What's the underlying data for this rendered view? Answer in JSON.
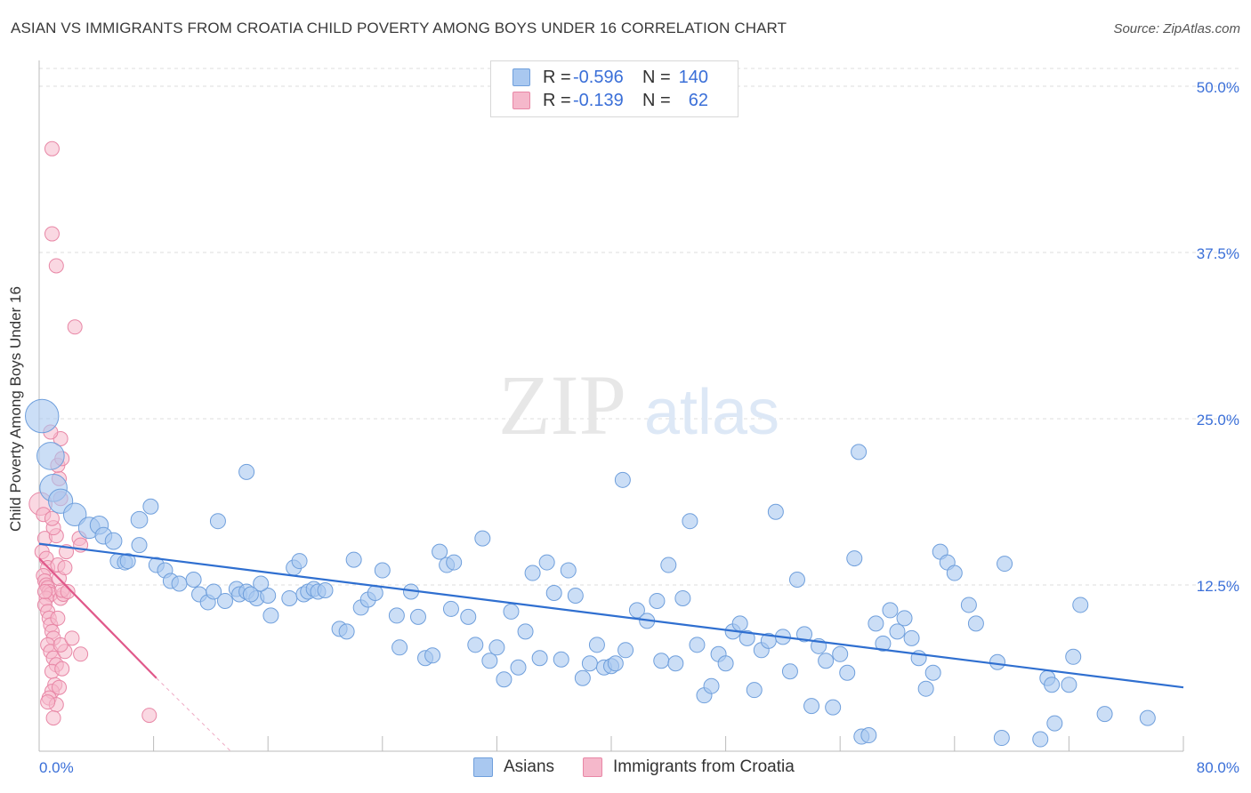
{
  "title": "ASIAN VS IMMIGRANTS FROM CROATIA CHILD POVERTY AMONG BOYS UNDER 16 CORRELATION CHART",
  "source": "Source: ZipAtlas.com",
  "watermark": {
    "zip": "ZIP",
    "atlas": "atlas"
  },
  "legend": {
    "rows": [
      {
        "r_label": "R =",
        "r_value": "-0.596",
        "n_label": "N =",
        "n_value": "140",
        "color": "#a9c8f0"
      },
      {
        "r_label": "R =",
        "r_value": "-0.139",
        "n_label": "N =",
        "n_value": "62",
        "color": "#f5b8cb"
      }
    ]
  },
  "bottom_legend": [
    {
      "label": "Asians",
      "color": "#a9c8f0"
    },
    {
      "label": "Immigrants from Croatia",
      "color": "#f5b8cb"
    }
  ],
  "colors": {
    "asian_fill": "#a9c8f0",
    "asian_stroke": "#6f9fdc",
    "asian_line": "#2f6fd0",
    "croatia_fill": "#f5b8cb",
    "croatia_stroke": "#e887a6",
    "croatia_line": "#e0588a",
    "tick_label": "#3a6fd8",
    "grid": "#dddddd"
  },
  "chart_data": {
    "type": "scatter",
    "title": "ASIAN VS IMMIGRANTS FROM CROATIA CHILD POVERTY AMONG BOYS UNDER 16 CORRELATION CHART",
    "xlabel": "",
    "ylabel": "Child Poverty Among Boys Under 16",
    "xlim": [
      0,
      80
    ],
    "ylim": [
      0,
      50
    ],
    "x_tick_labels": [
      "0.0%",
      "80.0%"
    ],
    "y_ticks": [
      12.5,
      25.0,
      37.5,
      50.0
    ],
    "y_tick_labels": [
      "12.5%",
      "25.0%",
      "37.5%",
      "50.0%"
    ],
    "grid": true,
    "legend_position": "top-center",
    "series": [
      {
        "name": "Asians",
        "trend": {
          "x0": 0,
          "y0": 15.6,
          "x1": 80,
          "y1": 4.8
        },
        "points": [
          [
            0.2,
            25.2,
            2.2
          ],
          [
            0.8,
            22.2,
            1.8
          ],
          [
            1.0,
            19.8,
            1.8
          ],
          [
            1.5,
            18.8,
            1.6
          ],
          [
            2.5,
            17.8,
            1.5
          ],
          [
            3.5,
            16.8,
            1.4
          ],
          [
            4.2,
            17.0,
            1.2
          ],
          [
            4.5,
            16.2,
            1.1
          ],
          [
            5.2,
            15.8,
            1.1
          ],
          [
            5.5,
            14.3,
            1.0
          ],
          [
            6.0,
            14.2,
            1.0
          ],
          [
            6.2,
            14.3,
            1.0
          ],
          [
            7.0,
            15.5,
            1.0
          ],
          [
            7.0,
            17.4,
            1.1
          ],
          [
            7.8,
            18.4,
            1.0
          ],
          [
            8.2,
            14.0,
            1.0
          ],
          [
            8.8,
            13.6,
            1.0
          ],
          [
            9.2,
            12.8,
            1.0
          ],
          [
            9.8,
            12.6,
            1.0
          ],
          [
            10.8,
            12.9,
            1.0
          ],
          [
            11.2,
            11.8,
            1.0
          ],
          [
            11.8,
            11.2,
            1.0
          ],
          [
            12.2,
            12.0,
            1.0
          ],
          [
            12.5,
            17.3,
            1.0
          ],
          [
            13.8,
            12.2,
            1.0
          ],
          [
            13.0,
            11.3,
            1.0
          ],
          [
            14.0,
            11.8,
            1.0
          ],
          [
            14.5,
            12.0,
            1.0
          ],
          [
            15.2,
            11.5,
            1.0
          ],
          [
            14.8,
            11.8,
            1.0
          ],
          [
            16.0,
            11.7,
            1.0
          ],
          [
            16.2,
            10.2,
            1.0
          ],
          [
            15.5,
            12.6,
            1.0
          ],
          [
            14.5,
            21.0,
            1.0
          ],
          [
            17.5,
            11.5,
            1.0
          ],
          [
            17.8,
            13.8,
            1.0
          ],
          [
            18.5,
            11.8,
            1.0
          ],
          [
            18.8,
            12.0,
            1.0
          ],
          [
            19.2,
            12.2,
            1.0
          ],
          [
            19.5,
            12.0,
            1.0
          ],
          [
            18.2,
            14.3,
            1.0
          ],
          [
            20.0,
            12.1,
            1.0
          ],
          [
            21.0,
            9.2,
            1.0
          ],
          [
            21.5,
            9.0,
            1.0
          ],
          [
            22.0,
            14.4,
            1.0
          ],
          [
            22.5,
            10.8,
            1.0
          ],
          [
            23.0,
            11.4,
            1.0
          ],
          [
            23.5,
            11.9,
            1.0
          ],
          [
            24.0,
            13.6,
            1.0
          ],
          [
            25.0,
            10.2,
            1.0
          ],
          [
            25.2,
            7.8,
            1.0
          ],
          [
            26.0,
            12.0,
            1.0
          ],
          [
            26.5,
            10.1,
            1.0
          ],
          [
            27.0,
            7.0,
            1.0
          ],
          [
            27.5,
            7.2,
            1.0
          ],
          [
            28.0,
            15.0,
            1.0
          ],
          [
            28.5,
            14.0,
            1.0
          ],
          [
            29.0,
            14.2,
            1.0
          ],
          [
            28.8,
            10.7,
            1.0
          ],
          [
            30.0,
            10.1,
            1.0
          ],
          [
            30.5,
            8.0,
            1.0
          ],
          [
            31.0,
            16.0,
            1.0
          ],
          [
            31.5,
            6.8,
            1.0
          ],
          [
            32.0,
            7.8,
            1.0
          ],
          [
            32.5,
            5.4,
            1.0
          ],
          [
            33.0,
            10.5,
            1.0
          ],
          [
            33.5,
            6.3,
            1.0
          ],
          [
            34.0,
            9.0,
            1.0
          ],
          [
            34.5,
            13.4,
            1.0
          ],
          [
            35.0,
            7.0,
            1.0
          ],
          [
            35.5,
            14.2,
            1.0
          ],
          [
            36.0,
            11.9,
            1.0
          ],
          [
            36.5,
            6.9,
            1.0
          ],
          [
            37.0,
            13.6,
            1.0
          ],
          [
            37.5,
            11.7,
            1.0
          ],
          [
            38.0,
            5.5,
            1.0
          ],
          [
            38.5,
            6.6,
            1.0
          ],
          [
            39.0,
            8.0,
            1.0
          ],
          [
            39.5,
            6.3,
            1.0
          ],
          [
            40.0,
            6.4,
            1.0
          ],
          [
            40.3,
            6.6,
            1.0
          ],
          [
            41.0,
            7.6,
            1.0
          ],
          [
            40.8,
            20.4,
            1.0
          ],
          [
            41.8,
            10.6,
            1.0
          ],
          [
            42.5,
            9.8,
            1.0
          ],
          [
            43.2,
            11.3,
            1.0
          ],
          [
            43.5,
            6.8,
            1.0
          ],
          [
            44.0,
            14.0,
            1.0
          ],
          [
            44.5,
            6.6,
            1.0
          ],
          [
            45.0,
            11.5,
            1.0
          ],
          [
            45.5,
            17.3,
            1.0
          ],
          [
            46.0,
            8.0,
            1.0
          ],
          [
            46.5,
            4.2,
            1.0
          ],
          [
            47.0,
            4.9,
            1.0
          ],
          [
            47.5,
            7.3,
            1.0
          ],
          [
            48.0,
            6.6,
            1.0
          ],
          [
            48.5,
            9.0,
            1.0
          ],
          [
            49.0,
            9.6,
            1.0
          ],
          [
            49.5,
            8.5,
            1.0
          ],
          [
            50.0,
            4.6,
            1.0
          ],
          [
            50.5,
            7.6,
            1.0
          ],
          [
            51.0,
            8.3,
            1.0
          ],
          [
            51.5,
            18.0,
            1.0
          ],
          [
            52.0,
            8.6,
            1.0
          ],
          [
            52.5,
            6.0,
            1.0
          ],
          [
            53.0,
            12.9,
            1.0
          ],
          [
            53.5,
            8.8,
            1.0
          ],
          [
            54.0,
            3.4,
            1.0
          ],
          [
            54.5,
            7.9,
            1.0
          ],
          [
            55.0,
            6.8,
            1.0
          ],
          [
            55.5,
            3.3,
            1.0
          ],
          [
            56.0,
            7.3,
            1.0
          ],
          [
            56.5,
            5.9,
            1.0
          ],
          [
            57.0,
            14.5,
            1.0
          ],
          [
            57.5,
            1.1,
            1.0
          ],
          [
            58.0,
            1.2,
            1.0
          ],
          [
            58.5,
            9.6,
            1.0
          ],
          [
            59.0,
            8.1,
            1.0
          ],
          [
            59.5,
            10.6,
            1.0
          ],
          [
            60.0,
            9.0,
            1.0
          ],
          [
            60.5,
            10.0,
            1.0
          ],
          [
            61.0,
            8.5,
            1.0
          ],
          [
            61.5,
            7.0,
            1.0
          ],
          [
            62.0,
            4.7,
            1.0
          ],
          [
            62.5,
            5.9,
            1.0
          ],
          [
            63.0,
            15.0,
            1.0
          ],
          [
            63.5,
            14.2,
            1.0
          ],
          [
            64.0,
            13.4,
            1.0
          ],
          [
            65.0,
            11.0,
            1.0
          ],
          [
            65.5,
            9.6,
            1.0
          ],
          [
            67.0,
            6.7,
            1.0
          ],
          [
            67.5,
            14.1,
            1.0
          ],
          [
            70.0,
            0.9,
            1.0
          ],
          [
            70.5,
            5.5,
            1.0
          ],
          [
            71.0,
            2.1,
            1.0
          ],
          [
            72.0,
            5.0,
            1.0
          ],
          [
            72.3,
            7.1,
            1.0
          ],
          [
            72.8,
            11.0,
            1.0
          ],
          [
            57.3,
            22.5,
            1.0
          ],
          [
            74.5,
            2.8,
            1.0
          ],
          [
            77.5,
            2.5,
            1.0
          ],
          [
            67.3,
            1.0,
            1.0
          ],
          [
            70.8,
            5.0,
            1.0
          ]
        ]
      },
      {
        "name": "Immigrants from Croatia",
        "trend": {
          "x0": 0,
          "y0": 14.5,
          "x1": 8.2,
          "y1": 5.5
        },
        "trend_extension": {
          "x0": 8.2,
          "y0": 5.5,
          "x1": 20,
          "y1": -7.0
        },
        "points": [
          [
            0.1,
            18.6,
            1.6
          ],
          [
            0.3,
            17.8,
            1.0
          ],
          [
            0.4,
            16.0,
            1.0
          ],
          [
            0.2,
            15.0,
            1.0
          ],
          [
            0.5,
            14.5,
            1.0
          ],
          [
            0.6,
            13.8,
            1.0
          ],
          [
            0.3,
            13.2,
            1.0
          ],
          [
            0.4,
            12.8,
            1.0
          ],
          [
            0.5,
            12.5,
            1.0
          ],
          [
            0.6,
            12.3,
            1.0
          ],
          [
            0.7,
            12.0,
            1.0
          ],
          [
            0.8,
            11.8,
            1.0
          ],
          [
            0.5,
            11.5,
            1.0
          ],
          [
            0.4,
            11.0,
            1.0
          ],
          [
            0.6,
            10.5,
            1.0
          ],
          [
            0.7,
            10.0,
            1.0
          ],
          [
            0.8,
            9.5,
            1.0
          ],
          [
            0.9,
            9.0,
            1.0
          ],
          [
            1.0,
            8.5,
            1.0
          ],
          [
            0.6,
            8.0,
            1.0
          ],
          [
            0.8,
            7.5,
            1.0
          ],
          [
            1.0,
            7.0,
            1.0
          ],
          [
            1.2,
            6.5,
            1.0
          ],
          [
            0.9,
            6.0,
            1.0
          ],
          [
            1.1,
            5.0,
            1.0
          ],
          [
            0.9,
            4.5,
            1.0
          ],
          [
            0.7,
            4.0,
            1.0
          ],
          [
            1.2,
            3.5,
            1.0
          ],
          [
            1.0,
            2.5,
            1.0
          ],
          [
            1.6,
            6.2,
            1.0
          ],
          [
            1.8,
            7.5,
            1.0
          ],
          [
            1.5,
            8.0,
            1.0
          ],
          [
            1.3,
            10.0,
            1.0
          ],
          [
            1.5,
            11.5,
            1.0
          ],
          [
            1.7,
            11.8,
            1.0
          ],
          [
            1.6,
            12.1,
            1.0
          ],
          [
            1.4,
            13.0,
            1.0
          ],
          [
            1.3,
            14.0,
            1.0
          ],
          [
            1.9,
            15.0,
            1.0
          ],
          [
            1.8,
            13.8,
            1.0
          ],
          [
            1.2,
            16.2,
            1.0
          ],
          [
            1.0,
            16.8,
            1.0
          ],
          [
            0.9,
            17.5,
            1.0
          ],
          [
            1.5,
            19.0,
            1.0
          ],
          [
            1.4,
            20.5,
            1.0
          ],
          [
            1.3,
            21.5,
            1.0
          ],
          [
            1.6,
            22.0,
            1.0
          ],
          [
            1.5,
            23.5,
            1.0
          ],
          [
            0.8,
            24.0,
            1.0
          ],
          [
            0.9,
            45.3,
            1.0
          ],
          [
            0.9,
            38.9,
            1.0
          ],
          [
            1.2,
            36.5,
            1.0
          ],
          [
            2.5,
            31.9,
            1.0
          ],
          [
            2.8,
            16.0,
            1.0
          ],
          [
            2.9,
            15.5,
            1.0
          ],
          [
            2.3,
            8.5,
            1.0
          ],
          [
            2.9,
            7.3,
            1.0
          ],
          [
            7.7,
            2.7,
            1.0
          ],
          [
            1.4,
            4.8,
            1.0
          ],
          [
            0.6,
            3.7,
            1.0
          ],
          [
            0.4,
            12.0,
            1.0
          ],
          [
            2.0,
            12.0,
            1.0
          ]
        ]
      }
    ]
  },
  "axis": {
    "y_title": "Child Poverty Among Boys Under 16"
  }
}
